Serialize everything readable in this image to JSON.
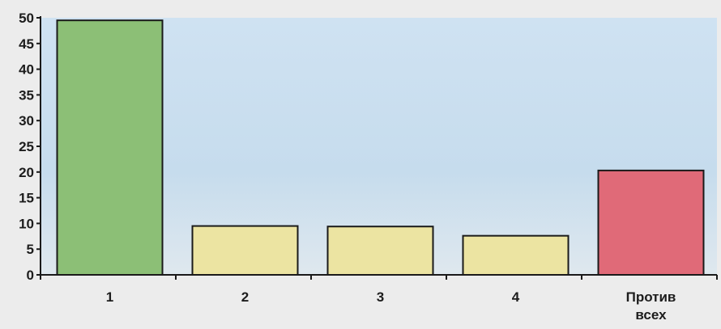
{
  "chart_data": {
    "type": "bar",
    "categories": [
      [
        "1"
      ],
      [
        "2"
      ],
      [
        "3"
      ],
      [
        "4"
      ],
      [
        "Против",
        "всех"
      ]
    ],
    "values": [
      49.5,
      9.5,
      9.4,
      7.6,
      20.3
    ],
    "bar_colors": [
      "#8cbf76",
      "#ece4a2",
      "#ece4a2",
      "#ece4a2",
      "#e06a78"
    ],
    "ylim": [
      0,
      50
    ],
    "yticks": [
      "0",
      "5",
      "10",
      "15",
      "20",
      "25",
      "30",
      "35",
      "40",
      "45",
      "50"
    ],
    "plot_background": "#c9dff0",
    "page_background": "#ececec",
    "title": "",
    "xlabel": "",
    "ylabel": "",
    "grid": false,
    "legend": "none"
  }
}
